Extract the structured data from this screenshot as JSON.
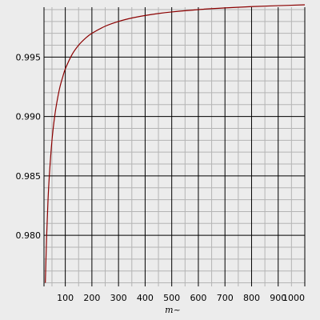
{
  "chart_data": {
    "type": "line",
    "title": "",
    "xlabel": "m~",
    "ylabel": "",
    "xlim": [
      20,
      1000
    ],
    "ylim": [
      0.9757,
      0.9992
    ],
    "grid": true,
    "x_major_ticks": [
      100,
      200,
      300,
      400,
      500,
      600,
      700,
      800,
      900,
      1000
    ],
    "x_minor_step": 50,
    "y_major_ticks": [
      0.98,
      0.985,
      0.99,
      0.995
    ],
    "y_minor_step": 0.001,
    "x_tick_labels": [
      "100",
      "200",
      "300",
      "400",
      "500",
      "600",
      "700",
      "800",
      "900",
      "1000"
    ],
    "y_tick_labels": [
      "0.980",
      "0.985",
      "0.990",
      "0.995"
    ],
    "colors": {
      "background": "#ececec",
      "line": "#8b0000",
      "grid_major": "#000000",
      "grid_minor": "#b4b4b4"
    },
    "series": [
      {
        "x": [
          25,
          30,
          35,
          40,
          50,
          60,
          70,
          80,
          90,
          100,
          125,
          150,
          175,
          200,
          250,
          300,
          350,
          400,
          450,
          500,
          600,
          700,
          800,
          900,
          1000
        ],
        "y": [
          0.976,
          0.98,
          0.9829,
          0.985,
          0.988,
          0.99,
          0.9914,
          0.9925,
          0.9933,
          0.994,
          0.9952,
          0.996,
          0.99657,
          0.997,
          0.9976,
          0.998,
          0.99829,
          0.9985,
          0.99867,
          0.9988,
          0.999,
          0.99914,
          0.99925,
          0.99933,
          0.9994
        ]
      }
    ]
  }
}
